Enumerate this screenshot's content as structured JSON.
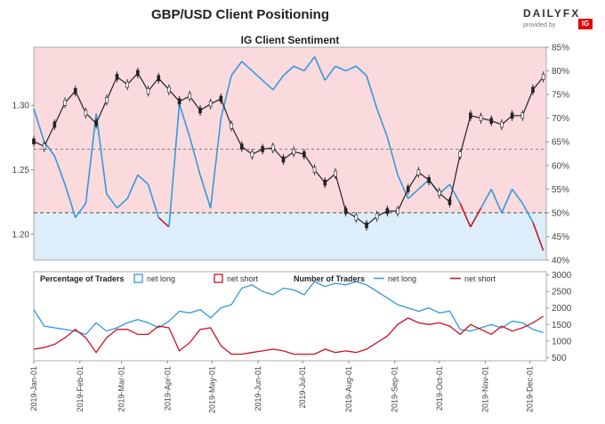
{
  "title": "GBP/USD Client Positioning",
  "logo": {
    "brand": "DAILYFX",
    "sub": "provided by",
    "badge": "IG"
  },
  "colors": {
    "net_long": "#3399dd",
    "net_short": "#cc1122",
    "candle": "#222222",
    "long_fill": "#ddeefa",
    "short_fill": "#fadadd"
  },
  "chart_data": [
    {
      "type": "line",
      "title": "IG Client Sentiment",
      "y_left_ticks": [
        "1.20",
        "1.25",
        "1.30"
      ],
      "y_left_range": [
        1.18,
        1.345
      ],
      "y_right_ticks": [
        "40%",
        "45%",
        "50%",
        "55%",
        "60%",
        "65%",
        "70%",
        "75%",
        "80%",
        "85%"
      ],
      "y_right_range": [
        40,
        85
      ],
      "reference_lines": [
        {
          "axis": "right",
          "value": 50
        },
        {
          "axis": "left",
          "value": 1.266
        }
      ],
      "price_series": [
        {
          "d": "2019-01-01",
          "p": 1.272
        },
        {
          "d": "2019-01-08",
          "p": 1.268
        },
        {
          "d": "2019-01-15",
          "p": 1.285
        },
        {
          "d": "2019-01-22",
          "p": 1.302
        },
        {
          "d": "2019-01-29",
          "p": 1.311
        },
        {
          "d": "2019-02-05",
          "p": 1.294
        },
        {
          "d": "2019-02-12",
          "p": 1.286
        },
        {
          "d": "2019-02-19",
          "p": 1.304
        },
        {
          "d": "2019-02-26",
          "p": 1.322
        },
        {
          "d": "2019-03-05",
          "p": 1.316
        },
        {
          "d": "2019-03-12",
          "p": 1.325
        },
        {
          "d": "2019-03-19",
          "p": 1.311
        },
        {
          "d": "2019-03-26",
          "p": 1.321
        },
        {
          "d": "2019-04-02",
          "p": 1.312
        },
        {
          "d": "2019-04-09",
          "p": 1.303
        },
        {
          "d": "2019-04-16",
          "p": 1.307
        },
        {
          "d": "2019-04-23",
          "p": 1.296
        },
        {
          "d": "2019-04-30",
          "p": 1.301
        },
        {
          "d": "2019-05-07",
          "p": 1.305
        },
        {
          "d": "2019-05-14",
          "p": 1.284
        },
        {
          "d": "2019-05-21",
          "p": 1.268
        },
        {
          "d": "2019-05-28",
          "p": 1.262
        },
        {
          "d": "2019-06-04",
          "p": 1.266
        },
        {
          "d": "2019-06-11",
          "p": 1.267
        },
        {
          "d": "2019-06-18",
          "p": 1.258
        },
        {
          "d": "2019-06-25",
          "p": 1.264
        },
        {
          "d": "2019-07-02",
          "p": 1.262
        },
        {
          "d": "2019-07-09",
          "p": 1.25
        },
        {
          "d": "2019-07-16",
          "p": 1.24
        },
        {
          "d": "2019-07-23",
          "p": 1.247
        },
        {
          "d": "2019-07-30",
          "p": 1.218
        },
        {
          "d": "2019-08-06",
          "p": 1.213
        },
        {
          "d": "2019-08-13",
          "p": 1.207
        },
        {
          "d": "2019-08-20",
          "p": 1.214
        },
        {
          "d": "2019-08-27",
          "p": 1.218
        },
        {
          "d": "2019-09-03",
          "p": 1.218
        },
        {
          "d": "2019-09-10",
          "p": 1.235
        },
        {
          "d": "2019-09-17",
          "p": 1.248
        },
        {
          "d": "2019-09-24",
          "p": 1.242
        },
        {
          "d": "2019-10-01",
          "p": 1.232
        },
        {
          "d": "2019-10-08",
          "p": 1.225
        },
        {
          "d": "2019-10-15",
          "p": 1.262
        },
        {
          "d": "2019-10-22",
          "p": 1.292
        },
        {
          "d": "2019-10-29",
          "p": 1.29
        },
        {
          "d": "2019-11-05",
          "p": 1.288
        },
        {
          "d": "2019-11-12",
          "p": 1.285
        },
        {
          "d": "2019-11-19",
          "p": 1.292
        },
        {
          "d": "2019-11-26",
          "p": 1.292
        },
        {
          "d": "2019-12-03",
          "p": 1.312
        },
        {
          "d": "2019-12-10",
          "p": 1.322
        }
      ],
      "net_long_pct_series": [
        {
          "d": "2019-01-01",
          "v": 72
        },
        {
          "d": "2019-01-08",
          "v": 65
        },
        {
          "d": "2019-01-15",
          "v": 62
        },
        {
          "d": "2019-01-22",
          "v": 56
        },
        {
          "d": "2019-01-29",
          "v": 49
        },
        {
          "d": "2019-02-05",
          "v": 52
        },
        {
          "d": "2019-02-12",
          "v": 71
        },
        {
          "d": "2019-02-19",
          "v": 54
        },
        {
          "d": "2019-02-26",
          "v": 51
        },
        {
          "d": "2019-03-05",
          "v": 53
        },
        {
          "d": "2019-03-12",
          "v": 58
        },
        {
          "d": "2019-03-19",
          "v": 56
        },
        {
          "d": "2019-03-26",
          "v": 49
        },
        {
          "d": "2019-04-02",
          "v": 47
        },
        {
          "d": "2019-04-09",
          "v": 73
        },
        {
          "d": "2019-04-16",
          "v": 66
        },
        {
          "d": "2019-04-23",
          "v": 58
        },
        {
          "d": "2019-04-30",
          "v": 51
        },
        {
          "d": "2019-05-07",
          "v": 70
        },
        {
          "d": "2019-05-14",
          "v": 79
        },
        {
          "d": "2019-05-21",
          "v": 82
        },
        {
          "d": "2019-05-28",
          "v": 80
        },
        {
          "d": "2019-06-04",
          "v": 78
        },
        {
          "d": "2019-06-11",
          "v": 76
        },
        {
          "d": "2019-06-18",
          "v": 79
        },
        {
          "d": "2019-06-25",
          "v": 81
        },
        {
          "d": "2019-07-02",
          "v": 80
        },
        {
          "d": "2019-07-09",
          "v": 83
        },
        {
          "d": "2019-07-16",
          "v": 78
        },
        {
          "d": "2019-07-23",
          "v": 81
        },
        {
          "d": "2019-07-30",
          "v": 80
        },
        {
          "d": "2019-08-06",
          "v": 81
        },
        {
          "d": "2019-08-13",
          "v": 79
        },
        {
          "d": "2019-08-20",
          "v": 72
        },
        {
          "d": "2019-08-27",
          "v": 66
        },
        {
          "d": "2019-09-03",
          "v": 58
        },
        {
          "d": "2019-09-10",
          "v": 53
        },
        {
          "d": "2019-09-17",
          "v": 55
        },
        {
          "d": "2019-09-24",
          "v": 57
        },
        {
          "d": "2019-10-01",
          "v": 54
        },
        {
          "d": "2019-10-08",
          "v": 56
        },
        {
          "d": "2019-10-15",
          "v": 52
        },
        {
          "d": "2019-10-22",
          "v": 47
        },
        {
          "d": "2019-10-29",
          "v": 51
        },
        {
          "d": "2019-11-05",
          "v": 55
        },
        {
          "d": "2019-11-12",
          "v": 50
        },
        {
          "d": "2019-11-19",
          "v": 55
        },
        {
          "d": "2019-11-26",
          "v": 52
        },
        {
          "d": "2019-12-03",
          "v": 48
        },
        {
          "d": "2019-12-10",
          "v": 42
        }
      ]
    },
    {
      "type": "line",
      "legend": {
        "percentage_label": "Percentage of Traders",
        "pct_long": "net long",
        "pct_short": "net short",
        "number_label": "Number of Traders",
        "num_long": "net long",
        "num_short": "net short"
      },
      "y_right_ticks": [
        "500",
        "1000",
        "1500",
        "2000",
        "2500",
        "3000"
      ],
      "y_right_range": [
        400,
        3100
      ],
      "x_ticks": [
        "2019-Jan-01",
        "2019-Feb-01",
        "2019-Mar-01",
        "2019-Apr-01",
        "2019-May-01",
        "2019-Jun-01",
        "2019-Jul-01",
        "2019-Aug-01",
        "2019-Sep-01",
        "2019-Oct-01",
        "2019-Nov-01",
        "2019-Dec-01"
      ],
      "x_range": [
        "2019-01-01",
        "2019-12-12"
      ],
      "series": [
        {
          "name": "net long",
          "values": [
            {
              "d": "2019-01-01",
              "v": 1950
            },
            {
              "d": "2019-01-08",
              "v": 1450
            },
            {
              "d": "2019-01-15",
              "v": 1400
            },
            {
              "d": "2019-01-22",
              "v": 1350
            },
            {
              "d": "2019-01-29",
              "v": 1300
            },
            {
              "d": "2019-02-05",
              "v": 1200
            },
            {
              "d": "2019-02-12",
              "v": 1550
            },
            {
              "d": "2019-02-19",
              "v": 1300
            },
            {
              "d": "2019-02-26",
              "v": 1400
            },
            {
              "d": "2019-03-05",
              "v": 1550
            },
            {
              "d": "2019-03-12",
              "v": 1650
            },
            {
              "d": "2019-03-19",
              "v": 1550
            },
            {
              "d": "2019-03-26",
              "v": 1400
            },
            {
              "d": "2019-04-02",
              "v": 1600
            },
            {
              "d": "2019-04-09",
              "v": 1900
            },
            {
              "d": "2019-04-16",
              "v": 1850
            },
            {
              "d": "2019-04-23",
              "v": 1950
            },
            {
              "d": "2019-04-30",
              "v": 1700
            },
            {
              "d": "2019-05-07",
              "v": 2000
            },
            {
              "d": "2019-05-14",
              "v": 2100
            },
            {
              "d": "2019-05-21",
              "v": 2600
            },
            {
              "d": "2019-05-28",
              "v": 2700
            },
            {
              "d": "2019-06-04",
              "v": 2500
            },
            {
              "d": "2019-06-11",
              "v": 2400
            },
            {
              "d": "2019-06-18",
              "v": 2600
            },
            {
              "d": "2019-06-25",
              "v": 2550
            },
            {
              "d": "2019-07-02",
              "v": 2400
            },
            {
              "d": "2019-07-09",
              "v": 2800
            },
            {
              "d": "2019-07-16",
              "v": 2650
            },
            {
              "d": "2019-07-23",
              "v": 2750
            },
            {
              "d": "2019-07-30",
              "v": 2700
            },
            {
              "d": "2019-08-06",
              "v": 2800
            },
            {
              "d": "2019-08-13",
              "v": 2700
            },
            {
              "d": "2019-08-20",
              "v": 2500
            },
            {
              "d": "2019-08-27",
              "v": 2300
            },
            {
              "d": "2019-09-03",
              "v": 2100
            },
            {
              "d": "2019-09-10",
              "v": 2000
            },
            {
              "d": "2019-09-17",
              "v": 1900
            },
            {
              "d": "2019-09-24",
              "v": 2000
            },
            {
              "d": "2019-10-01",
              "v": 1850
            },
            {
              "d": "2019-10-08",
              "v": 1900
            },
            {
              "d": "2019-10-15",
              "v": 1350
            },
            {
              "d": "2019-10-22",
              "v": 1300
            },
            {
              "d": "2019-10-29",
              "v": 1400
            },
            {
              "d": "2019-11-05",
              "v": 1500
            },
            {
              "d": "2019-11-12",
              "v": 1400
            },
            {
              "d": "2019-11-19",
              "v": 1600
            },
            {
              "d": "2019-11-26",
              "v": 1550
            },
            {
              "d": "2019-12-03",
              "v": 1350
            },
            {
              "d": "2019-12-10",
              "v": 1250
            }
          ]
        },
        {
          "name": "net short",
          "values": [
            {
              "d": "2019-01-01",
              "v": 750
            },
            {
              "d": "2019-01-08",
              "v": 800
            },
            {
              "d": "2019-01-15",
              "v": 900
            },
            {
              "d": "2019-01-22",
              "v": 1100
            },
            {
              "d": "2019-01-29",
              "v": 1350
            },
            {
              "d": "2019-02-05",
              "v": 1100
            },
            {
              "d": "2019-02-12",
              "v": 650
            },
            {
              "d": "2019-02-19",
              "v": 1100
            },
            {
              "d": "2019-02-26",
              "v": 1350
            },
            {
              "d": "2019-03-05",
              "v": 1350
            },
            {
              "d": "2019-03-12",
              "v": 1200
            },
            {
              "d": "2019-03-19",
              "v": 1200
            },
            {
              "d": "2019-03-26",
              "v": 1450
            },
            {
              "d": "2019-04-02",
              "v": 1400
            },
            {
              "d": "2019-04-09",
              "v": 700
            },
            {
              "d": "2019-04-16",
              "v": 950
            },
            {
              "d": "2019-04-23",
              "v": 1350
            },
            {
              "d": "2019-04-30",
              "v": 1400
            },
            {
              "d": "2019-05-07",
              "v": 850
            },
            {
              "d": "2019-05-14",
              "v": 600
            },
            {
              "d": "2019-05-21",
              "v": 600
            },
            {
              "d": "2019-05-28",
              "v": 650
            },
            {
              "d": "2019-06-04",
              "v": 700
            },
            {
              "d": "2019-06-11",
              "v": 750
            },
            {
              "d": "2019-06-18",
              "v": 700
            },
            {
              "d": "2019-06-25",
              "v": 600
            },
            {
              "d": "2019-07-02",
              "v": 600
            },
            {
              "d": "2019-07-09",
              "v": 600
            },
            {
              "d": "2019-07-16",
              "v": 750
            },
            {
              "d": "2019-07-23",
              "v": 650
            },
            {
              "d": "2019-07-30",
              "v": 700
            },
            {
              "d": "2019-08-06",
              "v": 650
            },
            {
              "d": "2019-08-13",
              "v": 750
            },
            {
              "d": "2019-08-20",
              "v": 950
            },
            {
              "d": "2019-08-27",
              "v": 1150
            },
            {
              "d": "2019-09-03",
              "v": 1500
            },
            {
              "d": "2019-09-10",
              "v": 1700
            },
            {
              "d": "2019-09-17",
              "v": 1550
            },
            {
              "d": "2019-09-24",
              "v": 1500
            },
            {
              "d": "2019-10-01",
              "v": 1550
            },
            {
              "d": "2019-10-08",
              "v": 1450
            },
            {
              "d": "2019-10-15",
              "v": 1200
            },
            {
              "d": "2019-10-22",
              "v": 1500
            },
            {
              "d": "2019-10-29",
              "v": 1350
            },
            {
              "d": "2019-11-05",
              "v": 1200
            },
            {
              "d": "2019-11-12",
              "v": 1450
            },
            {
              "d": "2019-11-19",
              "v": 1300
            },
            {
              "d": "2019-11-26",
              "v": 1400
            },
            {
              "d": "2019-12-03",
              "v": 1550
            },
            {
              "d": "2019-12-10",
              "v": 1750
            }
          ]
        }
      ]
    }
  ]
}
